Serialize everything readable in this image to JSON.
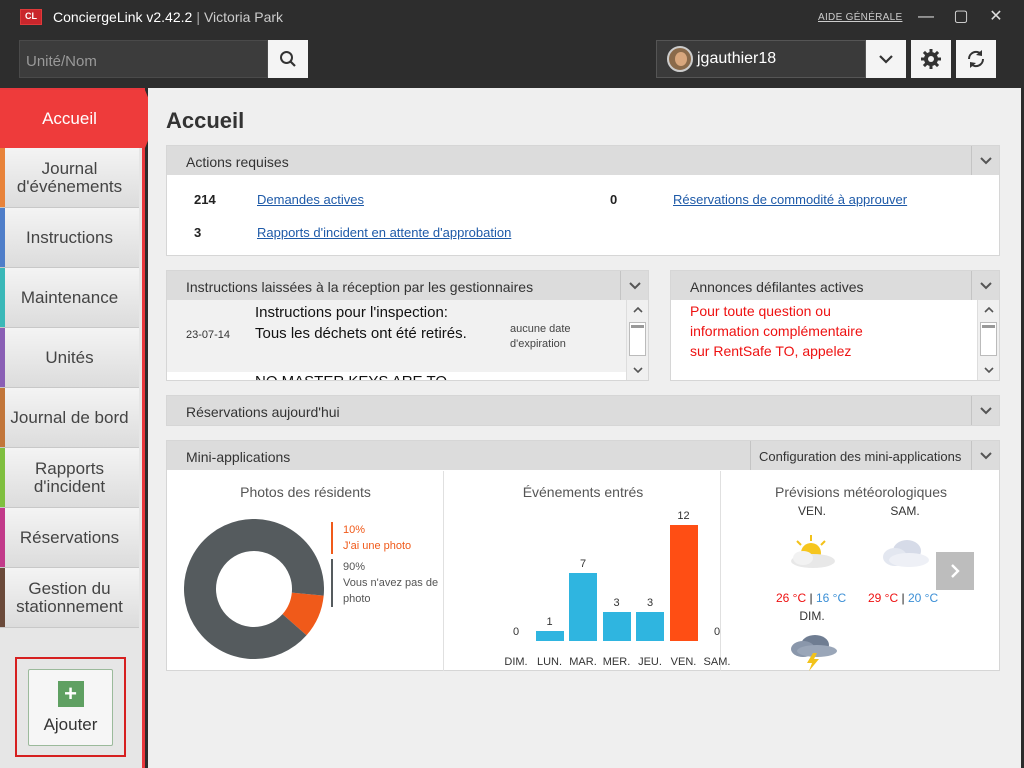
{
  "app": {
    "logo": "CL",
    "name": "ConciergeLink v2.42.2",
    "separator": "|",
    "site": "Victoria Park",
    "help_label": "AIDE GÉNÉRALE"
  },
  "window_controls": {
    "minimize": "—",
    "maximize": "▢",
    "close": "✕"
  },
  "search": {
    "placeholder": "Unité/Nom"
  },
  "user": {
    "name": "jgauthier18"
  },
  "sidebar": {
    "active": "Accueil",
    "items": [
      {
        "label": "Journal d'événements",
        "color": "#e8833a"
      },
      {
        "label": "Instructions",
        "color": "#4f7ec9"
      },
      {
        "label": "Maintenance",
        "color": "#3ab8b8"
      },
      {
        "label": "Unités",
        "color": "#8a5fb5"
      },
      {
        "label": "Journal de bord",
        "color": "#c2763a"
      },
      {
        "label": "Rapports d'incident",
        "color": "#7fbf3f"
      },
      {
        "label": "Réservations",
        "color": "#c23a8a"
      },
      {
        "label": "Gestion du stationnement",
        "color": "#6b4a3a"
      }
    ],
    "add_label": "Ajouter"
  },
  "main": {
    "title": "Accueil",
    "actions": {
      "header": "Actions requises",
      "rows": [
        {
          "count": "214",
          "label": "Demandes actives"
        },
        {
          "count": "0",
          "label": "Réservations de commodité à approuver"
        },
        {
          "count": "3",
          "label": "Rapports d'incident en attente d'approbation"
        }
      ]
    },
    "instructions": {
      "header": "Instructions laissées à la réception par les gestionnaires",
      "entry_date": "23-07-14",
      "entry_text": "Instructions pour l'inspection: Tous les déchets ont été retirés.",
      "entry_expiry": "aucune date d'expiration",
      "next_text": "NO MASTER KEYS ARE TO"
    },
    "announcements": {
      "header": "Annonces défilantes actives",
      "text": "Pour toute question ou information complémentaire sur RentSafe TO, appelez"
    },
    "reservations_today": {
      "header": "Réservations aujourd'hui"
    },
    "mini_apps": {
      "header": "Mini-applications",
      "config_label": "Configuration des mini-applications"
    }
  },
  "chart_data": [
    {
      "type": "pie",
      "title": "Photos des résidents",
      "slices": [
        {
          "pct": "10%",
          "label": "J'ai une photo",
          "value": 10,
          "color": "#f05a1a"
        },
        {
          "pct": "90%",
          "label": "Vous n'avez pas de photo",
          "value": 90,
          "color": "#555b5e"
        }
      ]
    },
    {
      "type": "bar",
      "title": "Événements entrés",
      "categories": [
        "DIM.",
        "LUN.",
        "MAR.",
        "MER.",
        "JEU.",
        "VEN.",
        "SAM."
      ],
      "values": [
        0,
        1,
        7,
        3,
        3,
        12,
        0
      ],
      "highlight_color": "#ff4e14",
      "bar_color": "#2fb5e0"
    }
  ],
  "weather": {
    "title": "Prévisions météorologiques",
    "days": [
      {
        "day": "VEN.",
        "high": "26 °C",
        "low": "16 °C",
        "icon": "sun-cloud-icon"
      },
      {
        "day": "SAM.",
        "high": "29 °C",
        "low": "20 °C",
        "icon": "cloud-icon"
      },
      {
        "day": "DIM.",
        "icon": "storm-icon"
      }
    ],
    "sep": "|"
  }
}
